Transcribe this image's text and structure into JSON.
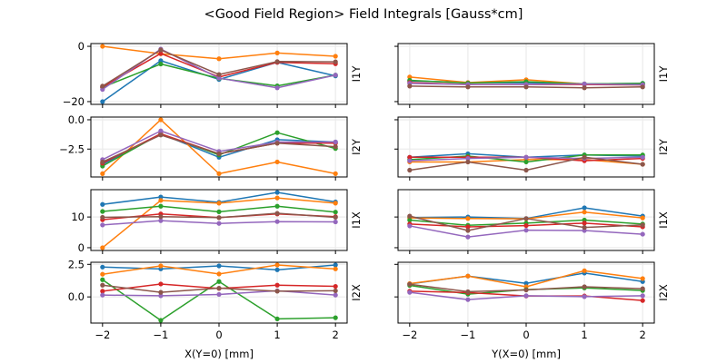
{
  "chart_data": {
    "type": "line",
    "title": "<Good Field Region> Field Integrals [Gauss*cm]",
    "grid": true,
    "legend": "none",
    "series_colors": [
      "#1f77b4",
      "#ff7f0e",
      "#2ca02c",
      "#d62728",
      "#9467bd",
      "#8c564b"
    ],
    "series_names": [
      "s1",
      "s2",
      "s3",
      "s4",
      "s5",
      "s6"
    ],
    "x": [
      -2,
      -1,
      0,
      1,
      2
    ],
    "x_ticks": [
      -2,
      -1,
      0,
      1,
      2
    ],
    "x_tick_labels": [
      "−2",
      "−1",
      "0",
      "1",
      "2"
    ],
    "xlim": [
      -2.2,
      2.2
    ],
    "columns": [
      {
        "xlabel": "X(Y=0) [mm]"
      },
      {
        "xlabel": "Y(X=0) [mm]"
      }
    ],
    "rows": [
      {
        "ylabel": "I1Y",
        "ylim": [
          -21,
          1
        ],
        "y_ticks": [
          0,
          -20
        ],
        "y_tick_labels": [
          "0",
          "−20"
        ],
        "left": [
          [
            -20,
            -5.2,
            -12.0,
            -5.8,
            -10.7
          ],
          [
            0,
            -2.7,
            -4.5,
            -2.4,
            -3.6
          ],
          [
            -14.8,
            -6.4,
            -11.6,
            -14.3,
            -10.4
          ],
          [
            -14.7,
            -2.6,
            -11.1,
            -5.8,
            -6.3
          ],
          [
            -15.6,
            -1.0,
            -11.5,
            -15.0,
            -10.4
          ],
          [
            -14.4,
            -1.3,
            -10.2,
            -5.5,
            -5.6
          ]
        ],
        "right": [
          [
            -12.5,
            -13.1,
            -13.2,
            -13.6,
            -13.4
          ],
          [
            -11.1,
            -13.1,
            -12.1,
            -13.6,
            -13.7
          ],
          [
            -12.3,
            -13.3,
            -12.8,
            -13.6,
            -13.4
          ],
          [
            -13.1,
            -13.8,
            -13.8,
            -13.8,
            -14.0
          ],
          [
            -13.4,
            -13.8,
            -13.8,
            -13.6,
            -13.9
          ],
          [
            -14.4,
            -14.7,
            -14.7,
            -15.0,
            -14.7
          ]
        ]
      },
      {
        "ylabel": "I2Y",
        "ylim": [
          -4.88,
          0.23
        ],
        "y_ticks": [
          0,
          -2.5
        ],
        "y_tick_labels": [
          "0.0",
          "−2.5"
        ],
        "left": [
          [
            -3.8,
            -1.2,
            -3.2,
            -1.7,
            -1.9
          ],
          [
            -4.6,
            0.0,
            -4.6,
            -3.6,
            -4.6
          ],
          [
            -3.95,
            -1.2,
            -3.0,
            -1.1,
            -2.45
          ],
          [
            -3.7,
            -1.2,
            -2.9,
            -2.0,
            -2.0
          ],
          [
            -3.4,
            -0.95,
            -2.7,
            -1.9,
            -1.9
          ],
          [
            -3.6,
            -1.3,
            -2.9,
            -2.0,
            -2.3
          ]
        ],
        "right": [
          [
            -3.2,
            -2.9,
            -3.2,
            -3.0,
            -3.1
          ],
          [
            -3.6,
            -3.6,
            -3.4,
            -3.4,
            -3.8
          ],
          [
            -3.4,
            -3.1,
            -3.6,
            -3.0,
            -3.0
          ],
          [
            -3.2,
            -3.2,
            -3.2,
            -3.5,
            -3.3
          ],
          [
            -3.5,
            -3.3,
            -3.2,
            -3.3,
            -3.2
          ],
          [
            -4.3,
            -3.6,
            -4.3,
            -3.2,
            -3.8
          ]
        ]
      },
      {
        "ylabel": "I1X",
        "ylim": [
          -0.9,
          18.9
        ],
        "y_ticks": [
          10,
          0
        ],
        "y_tick_labels": [
          "10",
          "0"
        ],
        "left": [
          [
            14.1,
            16.5,
            14.8,
            18.0,
            14.9
          ],
          [
            0.0,
            15.4,
            14.5,
            16.2,
            14.5
          ],
          [
            11.8,
            13.5,
            11.7,
            13.5,
            11.6
          ],
          [
            9.1,
            11.0,
            9.8,
            11.0,
            10.1
          ],
          [
            7.4,
            8.8,
            7.9,
            8.5,
            8.4
          ],
          [
            9.9,
            10.1,
            9.8,
            11.2,
            9.9
          ]
        ],
        "right": [
          [
            9.8,
            10.0,
            9.5,
            13.0,
            10.3
          ],
          [
            9.7,
            9.5,
            9.4,
            11.6,
            9.7
          ],
          [
            9.0,
            7.3,
            8.0,
            9.0,
            7.7
          ],
          [
            7.7,
            6.8,
            7.2,
            8.0,
            6.8
          ],
          [
            7.1,
            3.5,
            5.7,
            5.6,
            4.4
          ],
          [
            10.3,
            5.6,
            9.5,
            6.6,
            7.4
          ]
        ]
      },
      {
        "ylabel": "I2X",
        "ylim": [
          -2.01,
          2.66
        ],
        "y_ticks": [
          2.5,
          0
        ],
        "y_tick_labels": [
          "2.5",
          "0.0"
        ],
        "left": [
          [
            2.29,
            2.15,
            2.38,
            2.08,
            2.45
          ],
          [
            1.74,
            2.38,
            1.76,
            2.45,
            2.15
          ],
          [
            1.32,
            -1.8,
            1.18,
            -1.69,
            -1.6
          ],
          [
            0.44,
            0.99,
            0.65,
            0.9,
            0.81
          ],
          [
            0.14,
            0.09,
            0.19,
            0.47,
            0.14
          ],
          [
            0.9,
            0.35,
            0.67,
            0.44,
            0.47
          ]
        ],
        "right": [
          [
            1.0,
            1.6,
            1.04,
            1.83,
            1.18
          ],
          [
            1.02,
            1.6,
            0.78,
            2.01,
            1.41
          ],
          [
            0.88,
            0.21,
            0.56,
            0.69,
            0.49
          ],
          [
            0.44,
            0.33,
            0.07,
            0.07,
            -0.28
          ],
          [
            0.35,
            -0.21,
            0.09,
            0.02,
            0.09
          ],
          [
            0.97,
            0.4,
            0.53,
            0.78,
            0.63
          ]
        ]
      }
    ]
  }
}
